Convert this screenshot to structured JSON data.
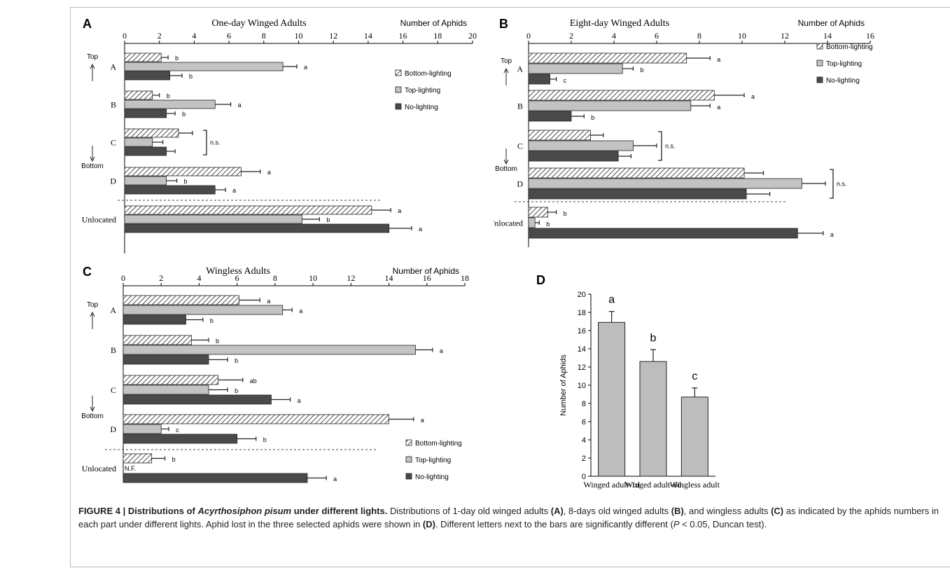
{
  "chart_data": [
    {
      "id": "A",
      "type": "bar",
      "panel_label": "A",
      "title": "One-day Winged Adults",
      "xlabel": "Number of Aphids",
      "xlim": [
        0,
        20
      ],
      "xticks": [
        "0",
        "2",
        "4",
        "6",
        "8",
        "10",
        "12",
        "14",
        "16",
        "18",
        "20"
      ],
      "orientation": "horizontal",
      "categories": [
        "A",
        "B",
        "C",
        "D",
        "Unlocated"
      ],
      "arrow_top": "Top",
      "arrow_bottom": "Bottom",
      "series": [
        {
          "name": "Bottom-lighting",
          "values": [
            2.1,
            1.6,
            3.1,
            6.7,
            14.2
          ],
          "errors": [
            0.4,
            0.4,
            0.8,
            1.1,
            1.1
          ],
          "letters": [
            "b",
            "b",
            "",
            "a",
            "a"
          ]
        },
        {
          "name": "Top-lighting",
          "values": [
            9.1,
            5.2,
            1.6,
            2.4,
            10.2
          ],
          "errors": [
            0.8,
            0.9,
            0.6,
            0.6,
            1.0
          ],
          "letters": [
            "a",
            "a",
            "",
            "b",
            "b"
          ]
        },
        {
          "name": "No-lighting",
          "values": [
            2.6,
            2.4,
            2.4,
            5.2,
            15.2
          ],
          "errors": [
            0.7,
            0.5,
            0.5,
            0.6,
            1.3
          ],
          "letters": [
            "b",
            "b",
            "",
            "a",
            "a"
          ]
        }
      ],
      "ns_label": "n.s.",
      "legend": [
        "Bottom-lighting",
        "Top-lighting",
        "No-lighting"
      ],
      "legend_placement": "right"
    },
    {
      "id": "B",
      "type": "bar",
      "panel_label": "B",
      "title": "Eight-day Winged Adults",
      "xlabel": "Number of Aphids",
      "xlim": [
        0,
        16
      ],
      "xticks": [
        "0",
        "2",
        "4",
        "6",
        "8",
        "10",
        "12",
        "14",
        "16"
      ],
      "orientation": "horizontal",
      "categories": [
        "A",
        "B",
        "C",
        "D",
        "Unlocated"
      ],
      "arrow_top": "Top",
      "arrow_bottom": "Bottom",
      "series": [
        {
          "name": "Bottom-lighting",
          "values": [
            7.4,
            8.7,
            2.9,
            10.1,
            0.9
          ],
          "errors": [
            1.1,
            1.4,
            0.6,
            0.9,
            0.4
          ],
          "letters": [
            "a",
            "a",
            "",
            "",
            ""
          ]
        },
        {
          "name": "Top-lighting",
          "values": [
            4.4,
            7.6,
            4.9,
            12.8,
            0.3
          ],
          "errors": [
            0.5,
            0.9,
            1.1,
            1.1,
            0.2
          ],
          "letters": [
            "b",
            "a",
            "",
            "",
            ""
          ]
        },
        {
          "name": "No-lighting",
          "values": [
            1.0,
            2.0,
            4.2,
            10.2,
            12.6
          ],
          "errors": [
            0.3,
            0.6,
            0.6,
            1.1,
            1.2
          ],
          "letters": [
            "c",
            "b",
            "",
            "",
            ""
          ]
        }
      ],
      "unlocated_letters": [
        "b",
        "b",
        "a"
      ],
      "ns_label": "n.s.",
      "legend": [
        "Bottom-lighting",
        "Top-lighting",
        "No-lighting"
      ],
      "legend_placement": "right"
    },
    {
      "id": "C",
      "type": "bar",
      "panel_label": "C",
      "title": "Wingless Adults",
      "xlabel": "Number of Aphids",
      "xlim": [
        0,
        18
      ],
      "xticks": [
        "0",
        "2",
        "4",
        "6",
        "8",
        "10",
        "12",
        "14",
        "16",
        "18"
      ],
      "orientation": "horizontal",
      "categories": [
        "A",
        "B",
        "C",
        "D",
        "Unlocated"
      ],
      "arrow_top": "Top",
      "arrow_bottom": "Bottom",
      "series": [
        {
          "name": "Bottom-lighting",
          "values": [
            6.1,
            3.6,
            5.0,
            14.0,
            1.5
          ],
          "errors": [
            1.1,
            0.9,
            1.3,
            1.3,
            0.7
          ],
          "letters": [
            "a",
            "b",
            "ab",
            "a",
            "b"
          ]
        },
        {
          "name": "Top-lighting",
          "values": [
            8.4,
            15.4,
            4.5,
            2.0,
            0
          ],
          "errors": [
            0.5,
            0.9,
            1.0,
            0.4,
            0
          ],
          "letters": [
            "a",
            "a",
            "b",
            "c",
            ""
          ]
        },
        {
          "name": "No-lighting",
          "values": [
            3.3,
            4.5,
            7.8,
            6.0,
            9.7
          ],
          "errors": [
            0.9,
            1.0,
            1.0,
            1.0,
            1.0
          ],
          "letters": [
            "b",
            "b",
            "a",
            "b",
            "a"
          ]
        }
      ],
      "nf_label": "N.F.",
      "legend": [
        "Bottom-lighting",
        "Top-lighting",
        "No-lighting"
      ],
      "legend_placement": "bottom-right"
    },
    {
      "id": "D",
      "type": "bar",
      "panel_label": "D",
      "ylabel": "Number of Aphids",
      "ylim": [
        0,
        20
      ],
      "yticks": [
        "0",
        "2",
        "4",
        "6",
        "8",
        "10",
        "12",
        "14",
        "16",
        "18",
        "20"
      ],
      "categories": [
        "Winged adult-1d",
        "Winged adult-8d",
        "Wingless adult"
      ],
      "values": [
        16.9,
        12.6,
        8.7
      ],
      "errors": [
        1.2,
        1.3,
        1.0
      ],
      "letters": [
        "a",
        "b",
        "c"
      ]
    }
  ],
  "caption": {
    "figure_label": "FIGURE 4 | Distributions of ",
    "species": "Acyrthosiphon pisum",
    "title_rest": " under different lights.",
    "body_1": " Distributions of 1-day old winged adults ",
    "ref_a": "(A)",
    "body_2": ", 8-days old winged adults ",
    "ref_b": "(B)",
    "body_3": ", and wingless adults ",
    "ref_c": "(C)",
    "body_4": " as indicated by the aphids numbers in each part under different lights. Aphid lost in the three selected aphids were shown in ",
    "ref_d": "(D)",
    "body_5": ". Different letters next to the bars are significantly different (",
    "p_var": "P",
    "body_6": " < 0.05, Duncan test)."
  }
}
